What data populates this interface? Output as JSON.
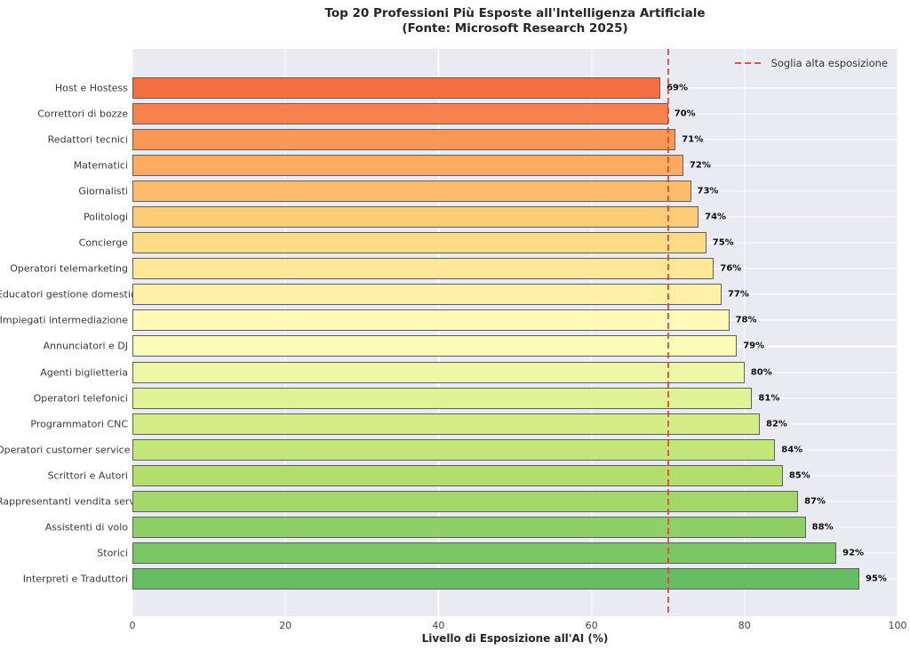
{
  "title": {
    "line1": "Top 20 Professioni Più Esposte all'Intelligenza Artificiale",
    "line2": "(Fonte: Microsoft Research 2025)"
  },
  "legend": {
    "threshold_label": "Soglia alta esposizione"
  },
  "axes": {
    "xlabel": "Livello di Esposizione all'AI (%)"
  },
  "style": {
    "figure_bg": "#ffffff",
    "plot_bg": "#eaeaf2",
    "grid_color": "#ffffff",
    "bar_edge_color": "#5f5f5f",
    "threshold_color": "#e93e32",
    "colormap": "RdYlGn"
  },
  "chart_data": {
    "type": "bar",
    "orientation": "horizontal",
    "title": "Top 20 Professioni Più Esposte all'Intelligenza Artificiale (Fonte: Microsoft Research 2025)",
    "xlabel": "Livello di Esposizione all'AI (%)",
    "xlim": [
      0,
      100
    ],
    "xticks": [
      0,
      20,
      40,
      60,
      80,
      100
    ],
    "grid": true,
    "legend_position": "upper right",
    "threshold": {
      "value": 70,
      "label": "Soglia alta esposizione",
      "style": "dashed",
      "color": "#e93e32"
    },
    "categories": [
      "Host e Hostess",
      "Correttori di bozze",
      "Redattori tecnici",
      "Matematici",
      "Giornalisti",
      "Politologi",
      "Concierge",
      "Operatori telemarketing",
      "Educatori gestione domestica",
      "Impiegati intermediazione",
      "Annunciatori e DJ",
      "Agenti biglietteria",
      "Operatori telefonici",
      "Programmatori CNC",
      "Operatori customer service",
      "Scrittori e Autori",
      "Rappresentanti vendita servizi",
      "Assistenti di volo",
      "Storici",
      "Interpreti e Traduttori"
    ],
    "values": [
      69,
      70,
      71,
      72,
      73,
      74,
      75,
      76,
      77,
      78,
      79,
      80,
      81,
      82,
      84,
      85,
      87,
      88,
      92,
      95
    ],
    "value_labels": [
      "69%",
      "70%",
      "71%",
      "72%",
      "73%",
      "74%",
      "75%",
      "76%",
      "77%",
      "78%",
      "79%",
      "80%",
      "81%",
      "82%",
      "84%",
      "85%",
      "87%",
      "88%",
      "92%",
      "95%"
    ],
    "bar_colors": [
      "#f46d43",
      "#f7824d",
      "#fa9656",
      "#fdab5f",
      "#fdbb6c",
      "#fecb79",
      "#fedb87",
      "#fee796",
      "#fff0a6",
      "#fffab7",
      "#f9fcb7",
      "#edf7a6",
      "#e1f296",
      "#d4ec88",
      "#c3e67a",
      "#b3de6c",
      "#a3d76a",
      "#8ecf67",
      "#7ac665",
      "#66bd63"
    ]
  }
}
